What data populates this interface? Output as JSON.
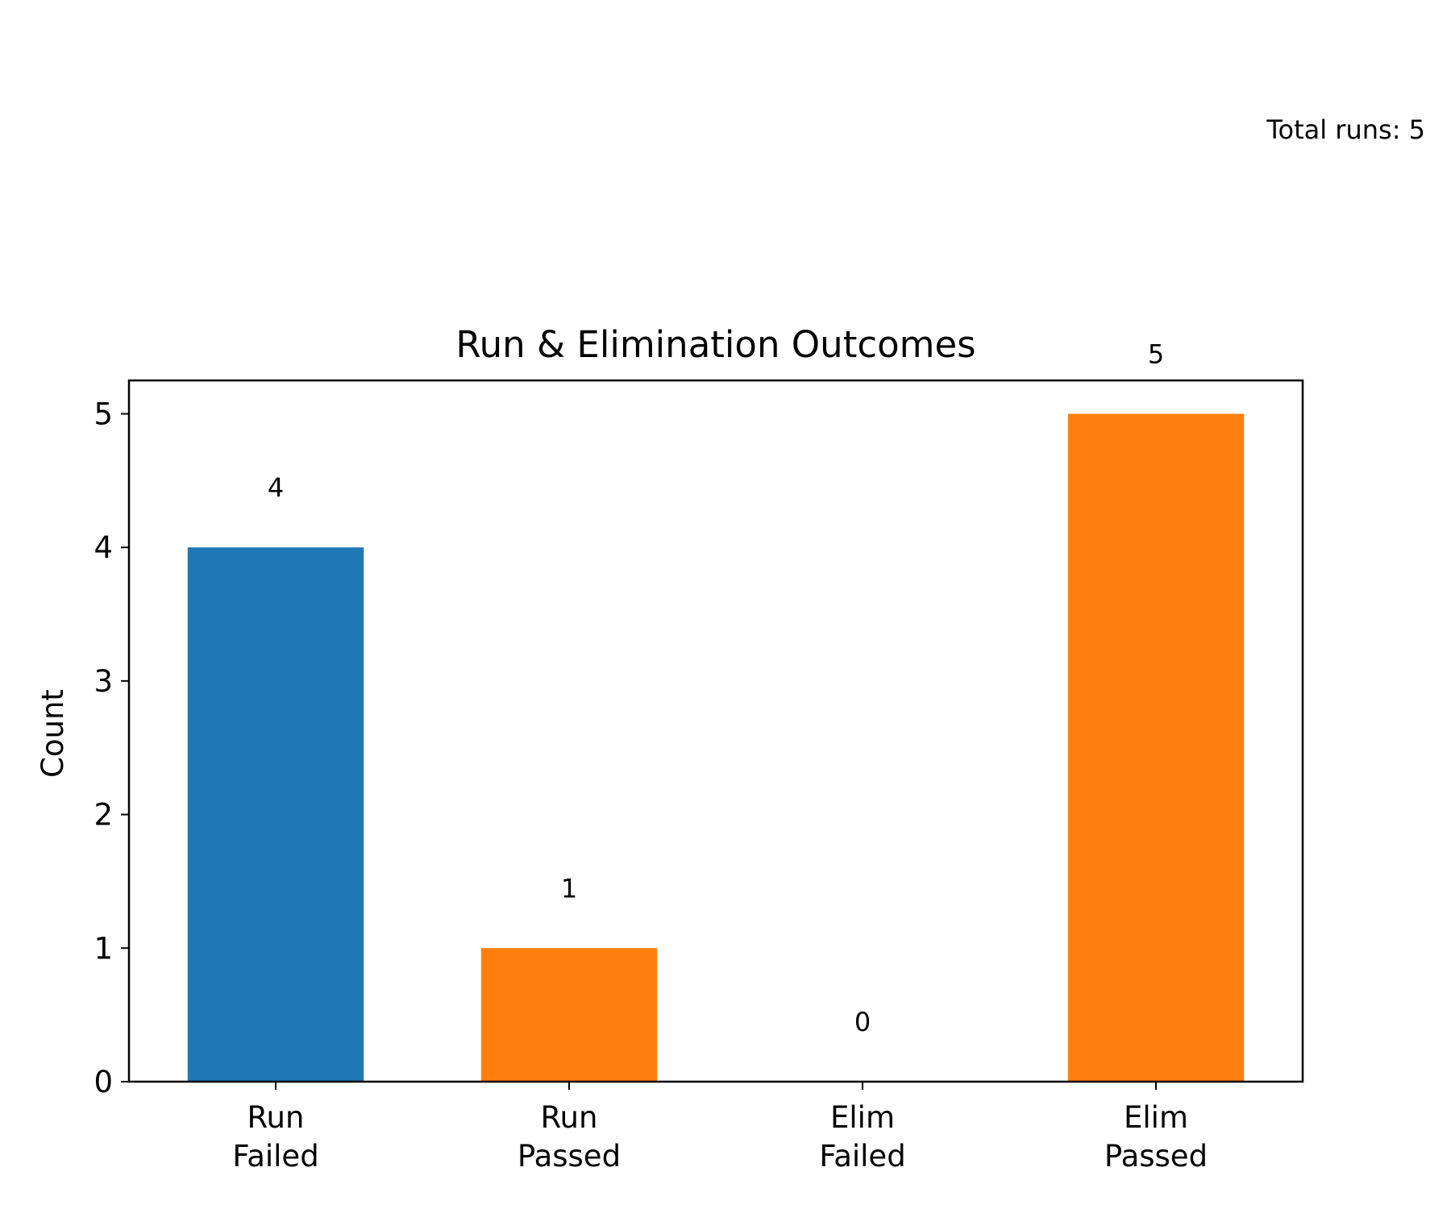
{
  "chart_data": {
    "type": "bar",
    "title": "Run & Elimination Outcomes",
    "ylabel": "Count",
    "xlabel": "",
    "categories": [
      [
        "Run",
        "Failed"
      ],
      [
        "Run",
        "Passed"
      ],
      [
        "Elim",
        "Failed"
      ],
      [
        "Elim",
        "Passed"
      ]
    ],
    "values": [
      4,
      1,
      0,
      5
    ],
    "bar_colors": [
      "#1f77b4",
      "#ff7f0e",
      "#ff7f0e",
      "#ff7f0e"
    ],
    "data_labels": [
      "4",
      "1",
      "0",
      "5"
    ],
    "yticks": [
      "0",
      "1",
      "2",
      "3",
      "4",
      "5"
    ],
    "ylim": [
      0,
      5.25
    ],
    "grid": false,
    "annotation": "Total runs: 5"
  }
}
